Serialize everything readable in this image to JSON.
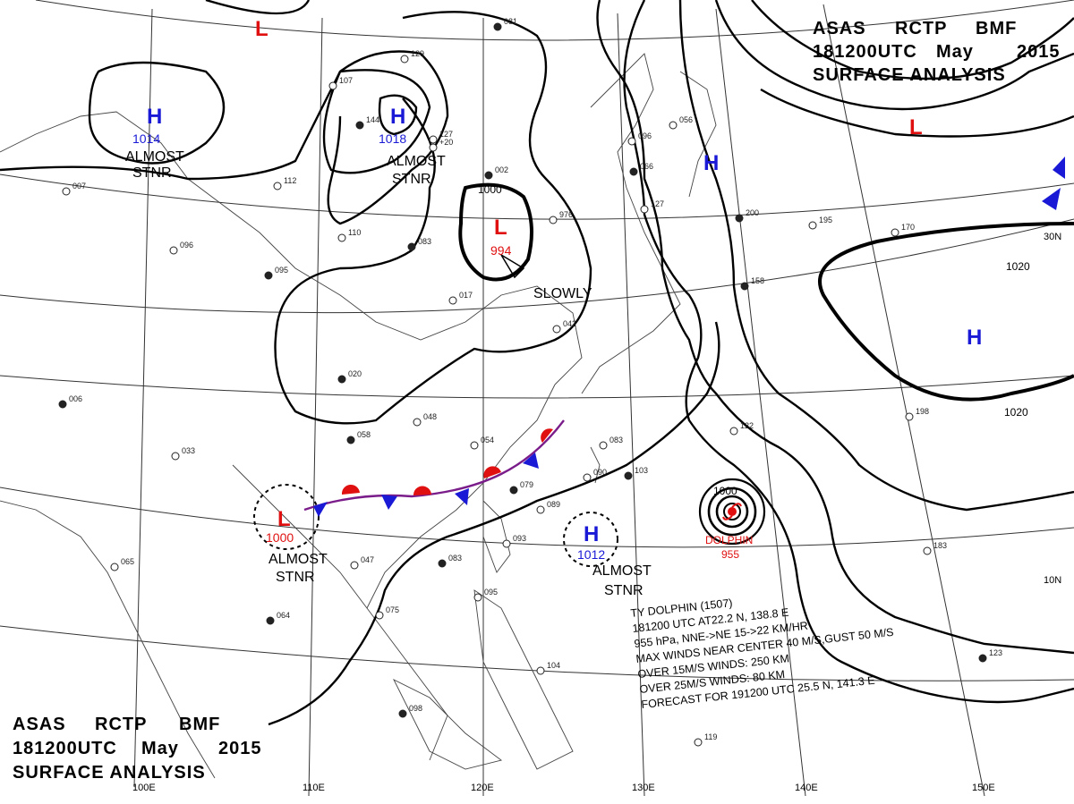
{
  "header_top": {
    "line1": [
      "ASAS",
      "RCTP",
      "BMF"
    ],
    "line2": [
      "181200UTC",
      "May",
      "2015"
    ],
    "line3": "SURFACE  ANALYSIS"
  },
  "header_bottom": {
    "line1": [
      "ASAS",
      "RCTP",
      "BMF"
    ],
    "line2": [
      "181200UTC",
      "May",
      "2015"
    ],
    "line3": "SURFACE  ANALYSIS"
  },
  "colors": {
    "high": "#1a1ad6",
    "low": "#e01010",
    "front_warm": "#e01010",
    "front_cold": "#1a1ad6"
  },
  "systems": [
    {
      "kind": "L",
      "pressure": "",
      "label": ""
    },
    {
      "kind": "H",
      "pressure": "1014",
      "label": "ALMOST STNR"
    },
    {
      "kind": "H",
      "pressure": "1018",
      "label": "ALMOST STNR"
    },
    {
      "kind": "L",
      "pressure": "994",
      "label": "SLOWLY"
    },
    {
      "kind": "H",
      "pressure": "",
      "label": ""
    },
    {
      "kind": "L",
      "pressure": "",
      "label": ""
    },
    {
      "kind": "H",
      "pressure": "",
      "label": ""
    },
    {
      "kind": "L",
      "pressure": "1000",
      "label": "ALMOST STNR"
    },
    {
      "kind": "H",
      "pressure": "1012",
      "label": "ALMOST STNR"
    }
  ],
  "isobar_labels": [
    "1000",
    "1020",
    "1020",
    "1000"
  ],
  "typhoon": {
    "name": "DOLPHIN",
    "pressure": "955",
    "lines": [
      "TY DOLPHIN (1507)",
      "181200 UTC  AT22.2 N, 138.8 E",
      "955 hPa, NNE->NE  15->22 KM/HR",
      "MAX WINDS NEAR CENTER 40 M/S,GUST 50 M/S",
      "OVER 15M/S WINDS: 250 KM",
      "OVER 25M/S WINDS: 80 KM",
      "FORECAST FOR 191200 UTC 25.5 N, 141.3 E"
    ]
  },
  "longitudes": [
    "100E",
    "110E",
    "120E",
    "130E",
    "140E",
    "150E"
  ],
  "latitudes": [
    "30N",
    "10N"
  ],
  "stations": [
    "081",
    "129",
    "107",
    "144",
    "127",
    "+20",
    "002",
    "112",
    "110",
    "083",
    "976",
    "096",
    "066",
    "127",
    "056",
    "200",
    "195",
    "170",
    "158",
    "017",
    "042",
    "020",
    "048",
    "054",
    "058",
    "083",
    "090",
    "103",
    "122",
    "198",
    "079",
    "089",
    "093",
    "083",
    "047",
    "075",
    "064",
    "095",
    "104",
    "098",
    "119",
    "183",
    "123",
    "065",
    "033",
    "006",
    "007",
    "096",
    "095"
  ]
}
